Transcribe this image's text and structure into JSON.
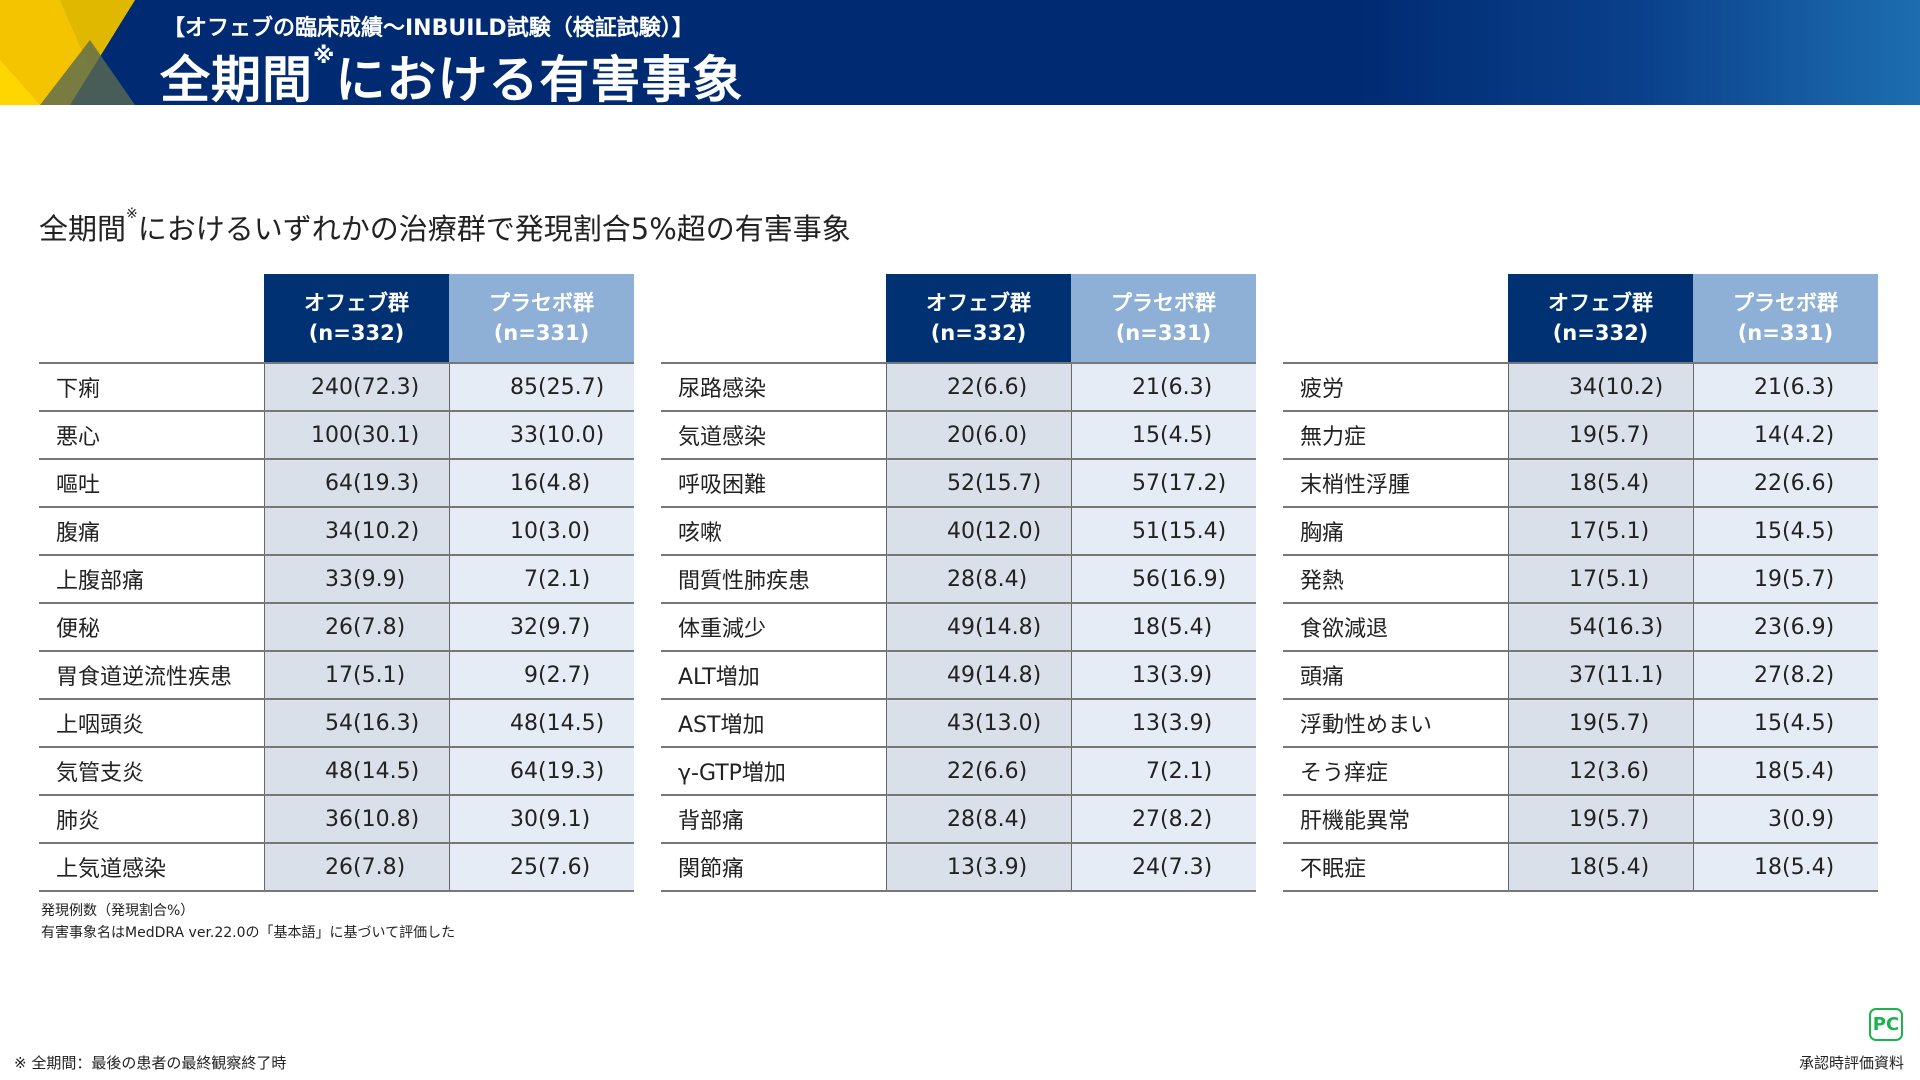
{
  "header": {
    "kicker": "【オフェブの臨床成績〜INBUILD試験（検証試験）】",
    "title": "全期間",
    "title_mark": "※",
    "title_rest": "における有害事象"
  },
  "subtitle": {
    "pre": "全期間",
    "mark": "※",
    "rest": "におけるいずれかの治療群で発現割合5%超の有害事象"
  },
  "columns": {
    "a_name": "オフェブ群",
    "a_n": "(n=332)",
    "b_name": "プラセボ群",
    "b_n": "(n=331)"
  },
  "colors": {
    "header_dark": "#003273",
    "header_light": "#8eb0d6",
    "cell_a": "#d9e0ea",
    "cell_b": "#e6ecf5",
    "logo_green": "#1db34a"
  },
  "tables": [
    [
      [
        "下痢",
        "240",
        "(72.3)",
        "85",
        "(25.7)"
      ],
      [
        "悪心",
        "100",
        "(30.1)",
        "33",
        "(10.0)"
      ],
      [
        "嘔吐",
        "64",
        "(19.3)",
        "16",
        "(4.8)"
      ],
      [
        "腹痛",
        "34",
        "(10.2)",
        "10",
        "(3.0)"
      ],
      [
        "上腹部痛",
        "33",
        "(9.9)",
        "7",
        "(2.1)"
      ],
      [
        "便秘",
        "26",
        "(7.8)",
        "32",
        "(9.7)"
      ],
      [
        "胃食道逆流性疾患",
        "17",
        "(5.1)",
        "9",
        "(2.7)"
      ],
      [
        "上咽頭炎",
        "54",
        "(16.3)",
        "48",
        "(14.5)"
      ],
      [
        "気管支炎",
        "48",
        "(14.5)",
        "64",
        "(19.3)"
      ],
      [
        "肺炎",
        "36",
        "(10.8)",
        "30",
        "(9.1)"
      ],
      [
        "上気道感染",
        "26",
        "(7.8)",
        "25",
        "(7.6)"
      ]
    ],
    [
      [
        "尿路感染",
        "22",
        "(6.6)",
        "21",
        "(6.3)"
      ],
      [
        "気道感染",
        "20",
        "(6.0)",
        "15",
        "(4.5)"
      ],
      [
        "呼吸困難",
        "52",
        "(15.7)",
        "57",
        "(17.2)"
      ],
      [
        "咳嗽",
        "40",
        "(12.0)",
        "51",
        "(15.4)"
      ],
      [
        "間質性肺疾患",
        "28",
        "(8.4)",
        "56",
        "(16.9)"
      ],
      [
        "体重減少",
        "49",
        "(14.8)",
        "18",
        "(5.4)"
      ],
      [
        "ALT増加",
        "49",
        "(14.8)",
        "13",
        "(3.9)"
      ],
      [
        "AST増加",
        "43",
        "(13.0)",
        "13",
        "(3.9)"
      ],
      [
        "γ-GTP増加",
        "22",
        "(6.6)",
        "7",
        "(2.1)"
      ],
      [
        "背部痛",
        "28",
        "(8.4)",
        "27",
        "(8.2)"
      ],
      [
        "関節痛",
        "13",
        "(3.9)",
        "24",
        "(7.3)"
      ]
    ],
    [
      [
        "疲労",
        "34",
        "(10.2)",
        "21",
        "(6.3)"
      ],
      [
        "無力症",
        "19",
        "(5.7)",
        "14",
        "(4.2)"
      ],
      [
        "末梢性浮腫",
        "18",
        "(5.4)",
        "22",
        "(6.6)"
      ],
      [
        "胸痛",
        "17",
        "(5.1)",
        "15",
        "(4.5)"
      ],
      [
        "発熱",
        "17",
        "(5.1)",
        "19",
        "(5.7)"
      ],
      [
        "食欲減退",
        "54",
        "(16.3)",
        "23",
        "(6.9)"
      ],
      [
        "頭痛",
        "37",
        "(11.1)",
        "27",
        "(8.2)"
      ],
      [
        "浮動性めまい",
        "19",
        "(5.7)",
        "15",
        "(4.5)"
      ],
      [
        "そう痒症",
        "12",
        "(3.6)",
        "18",
        "(5.4)"
      ],
      [
        "肝機能異常",
        "19",
        "(5.7)",
        "3",
        "(0.9)"
      ],
      [
        "不眠症",
        "18",
        "(5.4)",
        "18",
        "(5.4)"
      ]
    ]
  ],
  "notes": [
    "発現例数（発現割合%）",
    "有害事象名はMedDRA ver.22.0の「基本語」に基づいて評価した"
  ],
  "footnote": "※ 全期間：最後の患者の最終観察終了時",
  "logo": "PC",
  "confidential": "承認時評価資料"
}
